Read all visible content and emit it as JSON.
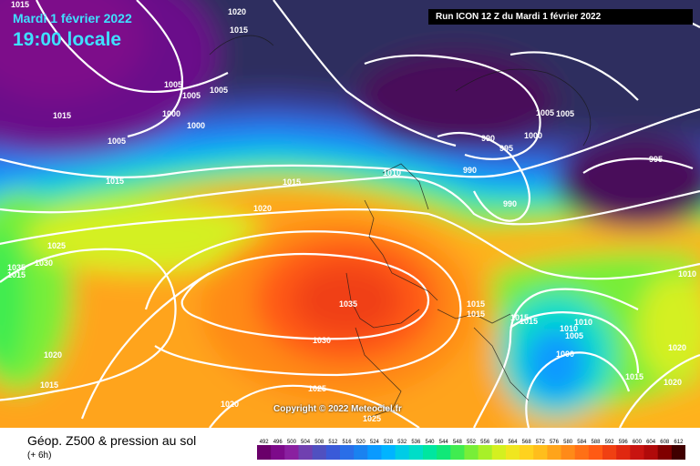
{
  "header": {
    "date": "Mardi 1 février 2022",
    "local_time": "19:00 locale",
    "run_info": "Run ICON 12 Z du Mardi 1 février 2022"
  },
  "watermark": "Copyright © 2022 Meteociel.fr",
  "footer": {
    "title": "Géop. Z500 & pression au sol",
    "subtitle": "(+ 6h)"
  },
  "scale_ticks": [
    "492",
    "496",
    "500",
    "504",
    "508",
    "512",
    "516",
    "520",
    "524",
    "528",
    "532",
    "536",
    "540",
    "544",
    "548",
    "552",
    "556",
    "560",
    "564",
    "568",
    "572",
    "576",
    "580",
    "584",
    "588",
    "592",
    "596",
    "600",
    "604",
    "608",
    "612"
  ],
  "scale_colors": [
    "#6a006a",
    "#7d0a8a",
    "#8a20a0",
    "#7040b0",
    "#5050c0",
    "#3a5ad8",
    "#2a6ee8",
    "#1a82f0",
    "#0a9aff",
    "#00b4ff",
    "#00cce6",
    "#00ddc8",
    "#00e6a0",
    "#10e878",
    "#40ec50",
    "#78ee38",
    "#a8f028",
    "#d4f020",
    "#f0e620",
    "#ffd21e",
    "#ffbe1c",
    "#ffa41a",
    "#ff8a18",
    "#ff7016",
    "#ff5a14",
    "#f04012",
    "#e02810",
    "#c81410",
    "#b00a0a",
    "#800000",
    "#400000"
  ],
  "isobar_labels": [
    "1015",
    "1020",
    "1015",
    "1015",
    "1005",
    "1000",
    "1005",
    "1005",
    "1000",
    "1005",
    "1015",
    "1015",
    "1005",
    "1010",
    "990",
    "995",
    "1000",
    "990",
    "1005",
    "995",
    "990",
    "1020",
    "1025",
    "1035",
    "1030",
    "1015",
    "1035",
    "1030",
    "1015",
    "1015",
    "1015",
    "1015",
    "1010",
    "1010",
    "1005",
    "1000",
    "1020",
    "1015",
    "1020",
    "1025",
    "1020",
    "1025",
    "1015",
    "1020",
    "1010"
  ]
}
